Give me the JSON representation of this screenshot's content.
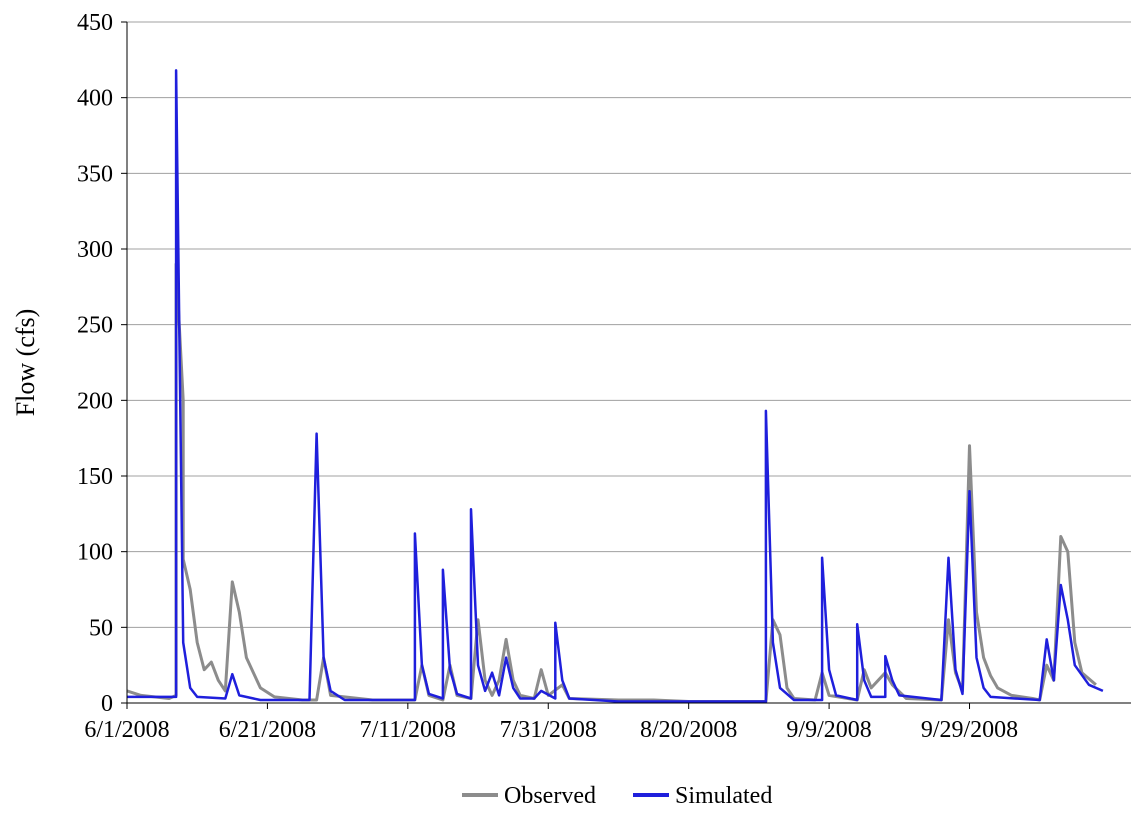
{
  "chart_data": {
    "type": "line",
    "title": "",
    "xlabel": "",
    "ylabel": "Flow (cfs)",
    "ylim": [
      0,
      450
    ],
    "xlim": [
      "2008-06-01",
      "2008-10-22"
    ],
    "y_ticks": [
      0,
      50,
      100,
      150,
      200,
      250,
      300,
      350,
      400,
      450
    ],
    "x_ticks": [
      {
        "date": "2008-06-01",
        "label": "6/1/2008"
      },
      {
        "date": "2008-06-21",
        "label": "6/21/2008"
      },
      {
        "date": "2008-07-11",
        "label": "7/11/2008"
      },
      {
        "date": "2008-07-31",
        "label": "7/31/2008"
      },
      {
        "date": "2008-08-20",
        "label": "8/20/2008"
      },
      {
        "date": "2008-09-09",
        "label": "9/9/2008"
      },
      {
        "date": "2008-09-29",
        "label": "9/29/2008"
      }
    ],
    "grid": "horizontal",
    "legend_position": "bottom",
    "series": [
      {
        "name": "Observed",
        "color": "#8c8c8c",
        "points": [
          [
            "2008-06-01",
            8
          ],
          [
            "2008-06-03",
            5
          ],
          [
            "2008-06-07",
            3
          ],
          [
            "2008-06-08",
            5
          ],
          [
            "2008-06-08",
            290
          ],
          [
            "2008-06-09",
            200
          ],
          [
            "2008-06-09",
            95
          ],
          [
            "2008-06-10",
            75
          ],
          [
            "2008-06-11",
            40
          ],
          [
            "2008-06-12",
            22
          ],
          [
            "2008-06-13",
            27
          ],
          [
            "2008-06-14",
            15
          ],
          [
            "2008-06-15",
            8
          ],
          [
            "2008-06-16",
            80
          ],
          [
            "2008-06-17",
            60
          ],
          [
            "2008-06-18",
            30
          ],
          [
            "2008-06-20",
            10
          ],
          [
            "2008-06-22",
            4
          ],
          [
            "2008-06-26",
            2
          ],
          [
            "2008-06-28",
            2
          ],
          [
            "2008-06-29",
            30
          ],
          [
            "2008-06-30",
            5
          ],
          [
            "2008-07-06",
            2
          ],
          [
            "2008-07-12",
            2
          ],
          [
            "2008-07-13",
            25
          ],
          [
            "2008-07-14",
            5
          ],
          [
            "2008-07-16",
            2
          ],
          [
            "2008-07-17",
            25
          ],
          [
            "2008-07-18",
            5
          ],
          [
            "2008-07-20",
            3
          ],
          [
            "2008-07-21",
            55
          ],
          [
            "2008-07-22",
            15
          ],
          [
            "2008-07-23",
            5
          ],
          [
            "2008-07-24",
            15
          ],
          [
            "2008-07-25",
            42
          ],
          [
            "2008-07-26",
            15
          ],
          [
            "2008-07-27",
            5
          ],
          [
            "2008-07-29",
            3
          ],
          [
            "2008-07-30",
            22
          ],
          [
            "2008-07-31",
            5
          ],
          [
            "2008-08-02",
            12
          ],
          [
            "2008-08-03",
            3
          ],
          [
            "2008-08-10",
            2
          ],
          [
            "2008-08-15",
            2
          ],
          [
            "2008-08-20",
            1
          ],
          [
            "2008-08-31",
            1
          ],
          [
            "2008-09-01",
            55
          ],
          [
            "2008-09-02",
            45
          ],
          [
            "2008-09-03",
            10
          ],
          [
            "2008-09-04",
            3
          ],
          [
            "2008-09-07",
            2
          ],
          [
            "2008-09-08",
            20
          ],
          [
            "2008-09-09",
            5
          ],
          [
            "2008-09-13",
            2
          ],
          [
            "2008-09-14",
            22
          ],
          [
            "2008-09-15",
            10
          ],
          [
            "2008-09-17",
            20
          ],
          [
            "2008-09-18",
            12
          ],
          [
            "2008-09-20",
            3
          ],
          [
            "2008-09-25",
            2
          ],
          [
            "2008-09-26",
            55
          ],
          [
            "2008-09-27",
            20
          ],
          [
            "2008-09-28",
            8
          ],
          [
            "2008-09-29",
            170
          ],
          [
            "2008-09-30",
            60
          ],
          [
            "2008-10-01",
            30
          ],
          [
            "2008-10-02",
            18
          ],
          [
            "2008-10-03",
            10
          ],
          [
            "2008-10-05",
            5
          ],
          [
            "2008-10-08",
            3
          ],
          [
            "2008-10-09",
            2
          ],
          [
            "2008-10-10",
            25
          ],
          [
            "2008-10-11",
            15
          ],
          [
            "2008-10-12",
            110
          ],
          [
            "2008-10-13",
            100
          ],
          [
            "2008-10-14",
            40
          ],
          [
            "2008-10-15",
            20
          ],
          [
            "2008-10-17",
            12
          ]
        ]
      },
      {
        "name": "Simulated",
        "color": "#1f1fdc",
        "points": [
          [
            "2008-06-01",
            4
          ],
          [
            "2008-06-08",
            4
          ],
          [
            "2008-06-08",
            418
          ],
          [
            "2008-06-09",
            40
          ],
          [
            "2008-06-10",
            10
          ],
          [
            "2008-06-11",
            4
          ],
          [
            "2008-06-15",
            3
          ],
          [
            "2008-06-16",
            19
          ],
          [
            "2008-06-17",
            5
          ],
          [
            "2008-06-20",
            2
          ],
          [
            "2008-06-27",
            2
          ],
          [
            "2008-06-28",
            178
          ],
          [
            "2008-06-29",
            30
          ],
          [
            "2008-06-30",
            8
          ],
          [
            "2008-07-02",
            2
          ],
          [
            "2008-07-12",
            2
          ],
          [
            "2008-07-12",
            112
          ],
          [
            "2008-07-13",
            25
          ],
          [
            "2008-07-14",
            6
          ],
          [
            "2008-07-16",
            3
          ],
          [
            "2008-07-16",
            88
          ],
          [
            "2008-07-17",
            22
          ],
          [
            "2008-07-18",
            6
          ],
          [
            "2008-07-20",
            3
          ],
          [
            "2008-07-20",
            128
          ],
          [
            "2008-07-21",
            25
          ],
          [
            "2008-07-22",
            8
          ],
          [
            "2008-07-23",
            20
          ],
          [
            "2008-07-24",
            5
          ],
          [
            "2008-07-25",
            30
          ],
          [
            "2008-07-26",
            10
          ],
          [
            "2008-07-27",
            3
          ],
          [
            "2008-07-29",
            3
          ],
          [
            "2008-07-30",
            8
          ],
          [
            "2008-08-01",
            3
          ],
          [
            "2008-08-01",
            53
          ],
          [
            "2008-08-02",
            15
          ],
          [
            "2008-08-03",
            3
          ],
          [
            "2008-08-10",
            1
          ],
          [
            "2008-08-31",
            1
          ],
          [
            "2008-08-31",
            193
          ],
          [
            "2008-09-01",
            40
          ],
          [
            "2008-09-02",
            10
          ],
          [
            "2008-09-04",
            2
          ],
          [
            "2008-09-08",
            2
          ],
          [
            "2008-09-08",
            96
          ],
          [
            "2008-09-09",
            22
          ],
          [
            "2008-09-10",
            5
          ],
          [
            "2008-09-13",
            2
          ],
          [
            "2008-09-13",
            52
          ],
          [
            "2008-09-14",
            15
          ],
          [
            "2008-09-15",
            4
          ],
          [
            "2008-09-17",
            4
          ],
          [
            "2008-09-17",
            31
          ],
          [
            "2008-09-18",
            15
          ],
          [
            "2008-09-19",
            5
          ],
          [
            "2008-09-25",
            2
          ],
          [
            "2008-09-26",
            96
          ],
          [
            "2008-09-27",
            22
          ],
          [
            "2008-09-28",
            6
          ],
          [
            "2008-09-29",
            140
          ],
          [
            "2008-09-30",
            30
          ],
          [
            "2008-10-01",
            10
          ],
          [
            "2008-10-02",
            4
          ],
          [
            "2008-10-09",
            2
          ],
          [
            "2008-10-10",
            42
          ],
          [
            "2008-10-11",
            15
          ],
          [
            "2008-10-12",
            78
          ],
          [
            "2008-10-13",
            55
          ],
          [
            "2008-10-14",
            25
          ],
          [
            "2008-10-16",
            12
          ],
          [
            "2008-10-18",
            8
          ]
        ]
      }
    ]
  }
}
